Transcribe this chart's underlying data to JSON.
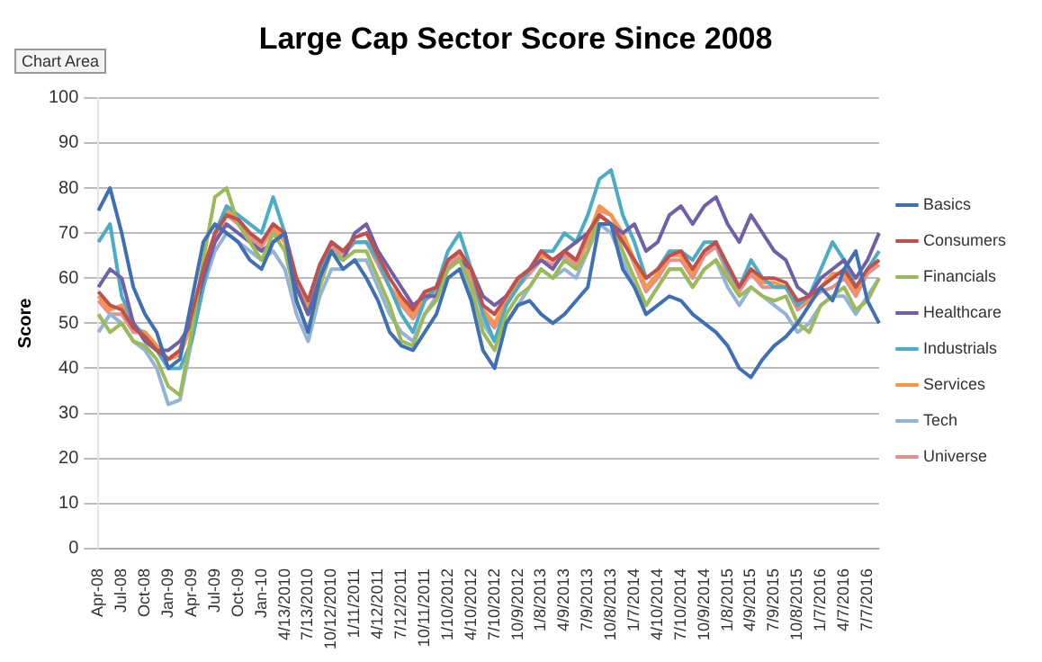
{
  "chart_data": {
    "type": "line",
    "title": "Large Cap Sector Score Since 2008",
    "ylabel": "Score",
    "annotations": [
      "Chart Area"
    ],
    "categories": [
      "Apr-08",
      null,
      "Jul-08",
      null,
      "Oct-08",
      null,
      "Jan-09",
      null,
      "Apr-09",
      null,
      "Jul-09",
      null,
      "Oct-09",
      null,
      "Jan-10",
      null,
      "4/13/2010",
      null,
      "7/13/2010",
      null,
      "10/12/2010",
      null,
      "1/11/2011",
      null,
      "4/12/2011",
      null,
      "7/12/2011",
      null,
      "10/11/2011",
      null,
      "1/10/2012",
      null,
      "4/10/2012",
      null,
      "7/10/2012",
      null,
      "10/9/2012",
      null,
      "1/8/2013",
      null,
      "4/9/2013",
      null,
      "7/9/2013",
      null,
      "10/8/2013",
      null,
      "1/7/2014",
      null,
      "4/10/2014",
      null,
      "7/10/2014",
      null,
      "10/9/2014",
      null,
      "1/8/2015",
      null,
      "4/9/2015",
      null,
      "7/9/2015",
      null,
      "10/8/2015",
      null,
      "1/7/2016",
      null,
      "4/7/2016",
      null,
      "7/7/2016",
      null
    ],
    "series": [
      {
        "name": "Basics",
        "color": "#3f6fb5",
        "values": [
          75,
          80,
          70,
          58,
          52,
          48,
          40,
          42,
          55,
          68,
          72,
          70,
          68,
          64,
          62,
          68,
          70,
          55,
          48,
          60,
          66,
          62,
          64,
          60,
          55,
          48,
          45,
          44,
          48,
          52,
          60,
          62,
          55,
          44,
          40,
          50,
          54,
          55,
          52,
          50,
          52,
          55,
          58,
          72,
          72,
          62,
          58,
          52,
          54,
          56,
          55,
          52,
          50,
          48,
          45,
          40,
          38,
          42,
          45,
          47,
          50,
          54,
          58,
          55,
          62,
          66,
          55,
          50
        ]
      },
      {
        "name": "Consumers",
        "color": "#c0504d",
        "values": [
          57,
          54,
          53,
          49,
          47,
          44,
          42,
          44,
          52,
          62,
          70,
          74,
          73,
          70,
          68,
          72,
          70,
          60,
          55,
          63,
          68,
          66,
          69,
          70,
          65,
          60,
          56,
          53,
          57,
          58,
          64,
          66,
          62,
          54,
          52,
          56,
          60,
          62,
          66,
          64,
          66,
          64,
          70,
          74,
          72,
          68,
          64,
          60,
          62,
          65,
          66,
          62,
          66,
          68,
          63,
          58,
          62,
          60,
          60,
          59,
          55,
          56,
          58,
          60,
          62,
          58,
          62,
          64
        ]
      },
      {
        "name": "Financials",
        "color": "#9bbb59",
        "values": [
          52,
          48,
          50,
          46,
          45,
          42,
          36,
          34,
          48,
          64,
          78,
          80,
          72,
          68,
          64,
          70,
          66,
          55,
          48,
          58,
          66,
          64,
          66,
          66,
          60,
          54,
          46,
          45,
          52,
          55,
          62,
          64,
          58,
          48,
          44,
          52,
          56,
          58,
          62,
          60,
          64,
          62,
          66,
          74,
          72,
          66,
          60,
          54,
          58,
          62,
          62,
          58,
          62,
          64,
          60,
          56,
          58,
          56,
          55,
          56,
          50,
          48,
          54,
          56,
          58,
          53,
          55,
          60
        ]
      },
      {
        "name": "Healthcare",
        "color": "#7060a8",
        "values": [
          58,
          62,
          60,
          50,
          46,
          44,
          44,
          46,
          50,
          60,
          68,
          72,
          70,
          68,
          66,
          68,
          70,
          58,
          52,
          60,
          66,
          64,
          70,
          72,
          66,
          62,
          58,
          54,
          56,
          56,
          62,
          64,
          62,
          56,
          54,
          56,
          60,
          62,
          64,
          62,
          66,
          68,
          70,
          74,
          72,
          70,
          72,
          66,
          68,
          74,
          76,
          72,
          76,
          78,
          72,
          68,
          74,
          70,
          66,
          64,
          58,
          56,
          60,
          62,
          64,
          60,
          64,
          70
        ]
      },
      {
        "name": "Industrials",
        "color": "#4bacc6",
        "values": [
          68,
          72,
          56,
          50,
          47,
          44,
          40,
          40,
          46,
          58,
          70,
          76,
          74,
          72,
          70,
          78,
          70,
          58,
          52,
          62,
          68,
          66,
          68,
          68,
          64,
          58,
          52,
          48,
          55,
          58,
          66,
          70,
          62,
          52,
          46,
          54,
          58,
          62,
          66,
          66,
          70,
          68,
          74,
          82,
          84,
          74,
          68,
          60,
          62,
          66,
          66,
          64,
          68,
          68,
          62,
          58,
          64,
          60,
          58,
          58,
          54,
          56,
          62,
          68,
          64,
          58,
          62,
          66
        ]
      },
      {
        "name": "Services",
        "color": "#f79646",
        "values": [
          56,
          53,
          54,
          49,
          48,
          45,
          42,
          43,
          50,
          60,
          70,
          75,
          73,
          70,
          68,
          72,
          68,
          58,
          54,
          63,
          68,
          66,
          68,
          68,
          64,
          58,
          55,
          52,
          56,
          58,
          64,
          66,
          61,
          53,
          50,
          55,
          59,
          62,
          65,
          64,
          66,
          64,
          69,
          76,
          74,
          70,
          64,
          58,
          61,
          65,
          65,
          61,
          66,
          68,
          62,
          58,
          62,
          59,
          59,
          58,
          54,
          55,
          58,
          61,
          61,
          57,
          62,
          64
        ]
      },
      {
        "name": "Tech",
        "color": "#95b3d7",
        "values": [
          48,
          52,
          50,
          46,
          44,
          40,
          32,
          33,
          46,
          58,
          66,
          70,
          68,
          66,
          64,
          66,
          62,
          52,
          46,
          56,
          62,
          62,
          64,
          64,
          58,
          52,
          48,
          46,
          52,
          56,
          60,
          62,
          56,
          50,
          46,
          50,
          54,
          58,
          62,
          60,
          62,
          60,
          66,
          72,
          70,
          64,
          58,
          54,
          58,
          62,
          62,
          58,
          62,
          64,
          58,
          54,
          58,
          56,
          54,
          52,
          48,
          50,
          54,
          56,
          56,
          52,
          56,
          60
        ]
      },
      {
        "name": "Universe",
        "color": "#e6908e",
        "values": [
          55,
          52,
          52,
          48,
          48,
          45,
          42,
          43,
          50,
          60,
          68,
          74,
          72,
          69,
          67,
          71,
          68,
          58,
          53,
          62,
          67,
          65,
          68,
          68,
          63,
          58,
          54,
          51,
          55,
          57,
          63,
          65,
          60,
          52,
          49,
          54,
          58,
          61,
          64,
          63,
          65,
          63,
          68,
          75,
          74,
          69,
          63,
          57,
          60,
          64,
          64,
          60,
          65,
          67,
          61,
          57,
          61,
          58,
          58,
          58,
          53,
          55,
          57,
          58,
          60,
          56,
          61,
          63
        ]
      }
    ],
    "ylim": [
      0,
      100
    ],
    "yticks": [
      0,
      10,
      20,
      30,
      40,
      50,
      60,
      70,
      80,
      90,
      100
    ],
    "grid": "y",
    "legend": "right",
    "marker": "none",
    "line_style": "solid"
  }
}
